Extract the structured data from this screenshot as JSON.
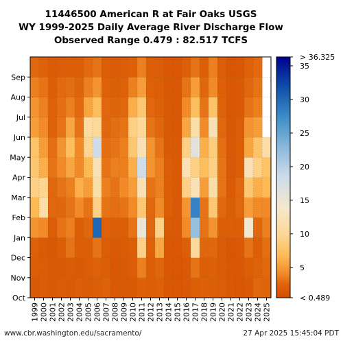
{
  "chart_data": {
    "type": "heatmap",
    "title_lines": [
      "11446500 American R at Fair Oaks USGS",
      "WY 1999-2025 Daily Average River Discharge Flow",
      "Observed Range 0.479 : 82.517 TCFS"
    ],
    "x_categories": [
      "1999",
      "2000",
      "2001",
      "2002",
      "2003",
      "2004",
      "2005",
      "2006",
      "2007",
      "2008",
      "2009",
      "2010",
      "2011",
      "2012",
      "2013",
      "2014",
      "2015",
      "2016",
      "2017",
      "2018",
      "2019",
      "2020",
      "2021",
      "2022",
      "2023",
      "2024",
      "2025"
    ],
    "y_ticks": [
      "Oct",
      "Nov",
      "Dec",
      "Jan",
      "Feb",
      "Mar",
      "Apr",
      "May",
      "Jun",
      "Jul",
      "Aug",
      "Sep"
    ],
    "months": [
      "Oct",
      "Nov",
      "Dec",
      "Jan",
      "Feb",
      "Mar",
      "Apr",
      "May",
      "Jun",
      "Jul",
      "Aug",
      "Sep"
    ],
    "colorbar": {
      "top_label": "> 36.325",
      "bottom_label": "< 0.489",
      "ticks": [
        "35",
        "30",
        "25",
        "20",
        "15",
        "10",
        "5"
      ],
      "tick_values": [
        35,
        30,
        25,
        20,
        15,
        10,
        5
      ],
      "min": 0.489,
      "max": 36.325
    },
    "grid": true,
    "approx_monthly_flow_tcfs": [
      [
        1.6,
        2.0,
        2.2,
        4.5,
        6.5,
        9.0,
        8.0,
        7.5,
        5.0,
        4.5,
        3.5,
        2.5
      ],
      [
        1.8,
        1.8,
        1.6,
        4.0,
        11.0,
        9.5,
        6.0,
        5.0,
        4.0,
        3.5,
        3.0,
        2.2
      ],
      [
        1.6,
        1.5,
        1.4,
        1.8,
        2.5,
        2.5,
        3.0,
        2.8,
        2.3,
        2.2,
        2.0,
        1.7
      ],
      [
        1.7,
        1.5,
        2.0,
        3.0,
        2.5,
        3.0,
        4.0,
        4.5,
        3.0,
        2.8,
        2.6,
        1.8
      ],
      [
        1.6,
        1.7,
        3.0,
        3.5,
        3.0,
        3.5,
        5.5,
        7.0,
        5.5,
        3.5,
        2.8,
        2.0
      ],
      [
        1.8,
        1.6,
        2.0,
        2.0,
        4.0,
        6.0,
        4.0,
        4.0,
        3.0,
        2.6,
        2.4,
        1.9
      ],
      [
        1.7,
        1.8,
        2.0,
        2.5,
        3.0,
        5.0,
        6.5,
        9.5,
        10.5,
        5.5,
        3.5,
        2.6
      ],
      [
        2.0,
        2.2,
        3.0,
        30.0,
        9.0,
        11.0,
        12.0,
        18.0,
        10.0,
        7.0,
        4.5,
        3.0
      ],
      [
        2.2,
        2.0,
        1.8,
        2.2,
        3.0,
        3.5,
        3.0,
        2.8,
        2.5,
        2.5,
        2.2,
        1.8
      ],
      [
        1.5,
        1.4,
        1.6,
        2.0,
        2.8,
        3.0,
        3.5,
        3.0,
        2.8,
        2.4,
        2.0,
        1.7
      ],
      [
        1.6,
        1.6,
        1.7,
        2.0,
        3.0,
        4.0,
        3.5,
        3.5,
        3.0,
        2.5,
        2.2,
        1.8
      ],
      [
        1.6,
        1.8,
        2.0,
        3.0,
        4.0,
        5.0,
        6.0,
        8.0,
        9.0,
        6.0,
        3.5,
        2.2
      ],
      [
        2.2,
        3.5,
        9.0,
        15.0,
        8.0,
        12.0,
        18.0,
        12.0,
        10.0,
        8.0,
        5.0,
        3.5
      ],
      [
        2.0,
        2.0,
        2.2,
        2.5,
        2.5,
        3.0,
        4.5,
        4.5,
        3.0,
        2.5,
        2.2,
        2.0
      ],
      [
        2.2,
        2.5,
        5.5,
        9.0,
        4.0,
        3.5,
        3.5,
        3.0,
        2.5,
        2.2,
        2.0,
        1.8
      ],
      [
        1.4,
        1.3,
        1.4,
        1.5,
        2.0,
        2.0,
        1.8,
        1.6,
        1.5,
        1.5,
        1.4,
        1.3
      ],
      [
        1.2,
        1.2,
        1.3,
        1.5,
        1.5,
        1.6,
        1.6,
        1.5,
        1.4,
        1.4,
        1.3,
        1.2
      ],
      [
        1.5,
        1.5,
        2.0,
        4.0,
        4.5,
        9.0,
        12.0,
        9.0,
        5.5,
        4.0,
        3.0,
        2.0
      ],
      [
        2.0,
        3.0,
        10.0,
        22.0,
        28.0,
        12.0,
        9.0,
        16.0,
        11.0,
        7.0,
        5.0,
        3.0
      ],
      [
        2.2,
        2.0,
        2.5,
        3.0,
        3.0,
        5.0,
        7.0,
        6.0,
        4.0,
        3.0,
        2.5,
        2.0
      ],
      [
        2.0,
        2.2,
        2.5,
        4.5,
        8.0,
        11.0,
        9.0,
        8.5,
        12.0,
        7.5,
        4.0,
        3.5
      ],
      [
        1.8,
        1.7,
        1.7,
        2.0,
        2.5,
        3.0,
        3.0,
        2.8,
        2.5,
        2.3,
        2.1,
        1.9
      ],
      [
        1.3,
        1.3,
        1.2,
        2.0,
        1.8,
        1.6,
        1.5,
        1.5,
        1.4,
        1.3,
        1.3,
        1.2
      ],
      [
        1.2,
        1.4,
        1.6,
        2.0,
        2.5,
        2.5,
        2.0,
        2.0,
        1.8,
        1.6,
        1.5,
        1.4
      ],
      [
        1.6,
        2.0,
        3.0,
        14.0,
        5.0,
        8.0,
        12.0,
        5.5,
        4.5,
        3.0,
        2.5,
        2.3
      ],
      [
        2.5,
        2.3,
        2.0,
        2.5,
        4.0,
        6.0,
        9.0,
        7.5,
        5.0,
        3.5,
        3.0,
        2.6
      ],
      [
        2.4,
        2.5,
        2.8,
        3.5,
        4.0,
        6.5,
        7.5,
        11.0,
        null,
        null,
        null,
        null
      ]
    ]
  },
  "footer": {
    "left": "www.cbr.washington.edu/sacramento/",
    "right": "27 Apr 2025 15:45:04 PDT"
  }
}
